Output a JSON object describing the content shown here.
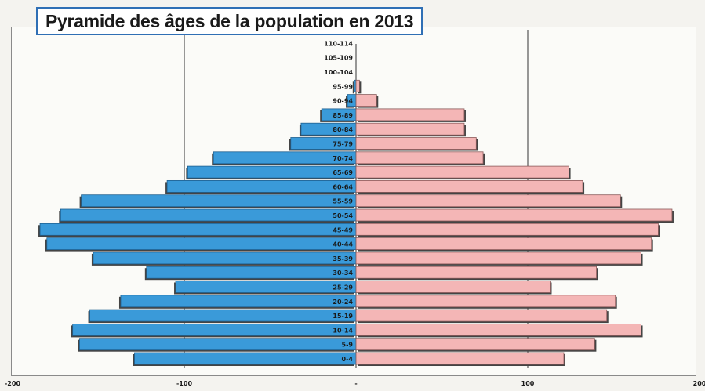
{
  "chart_data": {
    "type": "bar",
    "orientation": "horizontal",
    "title": "Pyramide des âges de la population en 2013",
    "categories": [
      "0-4",
      "5-9",
      "10-14",
      "15-19",
      "20-24",
      "25-29",
      "30-34",
      "35-39",
      "40-44",
      "45-49",
      "50-54",
      "55-59",
      "60-64",
      "65-69",
      "70-74",
      "75-79",
      "80-84",
      "85-89",
      "90-94",
      "95-99",
      "100-104",
      "105-109",
      "110-114"
    ],
    "series": [
      {
        "values": [
          -129,
          -161,
          -165,
          -155,
          -137,
          -105,
          -122,
          -153,
          -180,
          -184,
          -172,
          -160,
          -110,
          -98,
          -83,
          -38,
          -32,
          -20,
          -5,
          -1,
          0,
          0,
          0
        ],
        "color": "#3a9ad9"
      },
      {
        "values": [
          121,
          139,
          166,
          146,
          151,
          113,
          140,
          166,
          172,
          176,
          184,
          154,
          132,
          124,
          74,
          70,
          63,
          63,
          12,
          2,
          0,
          0,
          0
        ],
        "color": "#f4b6b6"
      }
    ],
    "x_ticks": [
      -200,
      -100,
      0,
      100,
      200
    ],
    "x_tick_labels": [
      "-200",
      "-100",
      "-",
      "100",
      "200"
    ],
    "xlim": [
      -200,
      200
    ],
    "grid": "vertical lines at -100 and 100"
  }
}
